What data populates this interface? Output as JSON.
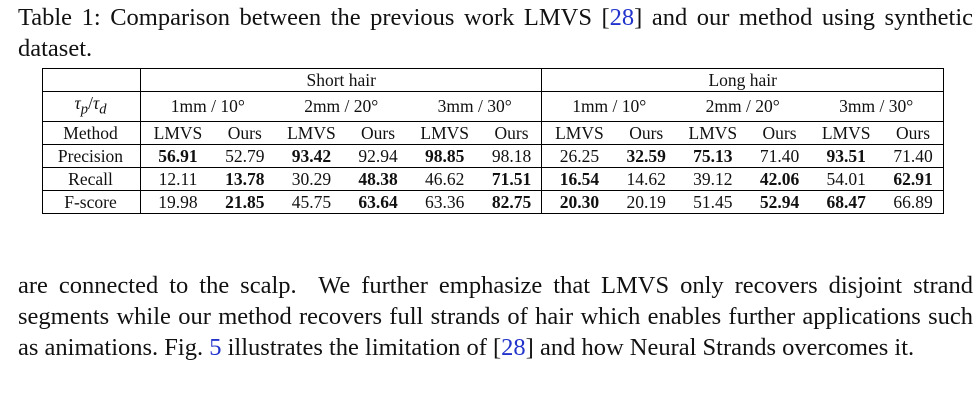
{
  "caption": {
    "label": "Table 1:",
    "text_before": "Comparison between the previous work LMVS [",
    "ref": "28",
    "text_after": "] and our method using synthetic dataset."
  },
  "table": {
    "groups": [
      "Short hair",
      "Long hair"
    ],
    "threshold_label": {
      "base1": "τ",
      "sub1": "p",
      "sep": "/",
      "base2": "τ",
      "sub2": "d"
    },
    "thresholds": [
      "1mm / 10°",
      "2mm / 20°",
      "3mm / 30°",
      "1mm / 10°",
      "2mm / 20°",
      "3mm / 30°"
    ],
    "method_label": "Method",
    "methods": [
      "LMVS",
      "Ours",
      "LMVS",
      "Ours",
      "LMVS",
      "Ours",
      "LMVS",
      "Ours",
      "LMVS",
      "Ours",
      "LMVS",
      "Ours"
    ],
    "rows": [
      {
        "name": "Precision",
        "values": [
          "56.91",
          "52.79",
          "93.42",
          "92.94",
          "98.85",
          "98.18",
          "26.25",
          "32.59",
          "75.13",
          "71.40",
          "93.51",
          "71.40"
        ],
        "bold": [
          0,
          2,
          4,
          7,
          8,
          10
        ]
      },
      {
        "name": "Recall",
        "values": [
          "12.11",
          "13.78",
          "30.29",
          "48.38",
          "46.62",
          "71.51",
          "16.54",
          "14.62",
          "39.12",
          "42.06",
          "54.01",
          "62.91"
        ],
        "bold": [
          1,
          3,
          5,
          6,
          9,
          11
        ]
      },
      {
        "name": "F-score",
        "values": [
          "19.98",
          "21.85",
          "45.75",
          "63.64",
          "63.36",
          "82.75",
          "20.30",
          "20.19",
          "51.45",
          "52.94",
          "68.47",
          "66.89"
        ],
        "bold": [
          1,
          3,
          5,
          6,
          9,
          10
        ]
      }
    ]
  },
  "paragraph": {
    "text_before": "are connected to the scalp.  We further emphasize that LMVS only recovers disjoint strand segments while our method recovers full strands of hair which enables further applications such as animations. Fig. ",
    "ref1": "5",
    "text_middle": " illustrates the limitation of [",
    "ref2": "28",
    "text_after": "] and how Neural Strands overcomes it."
  }
}
